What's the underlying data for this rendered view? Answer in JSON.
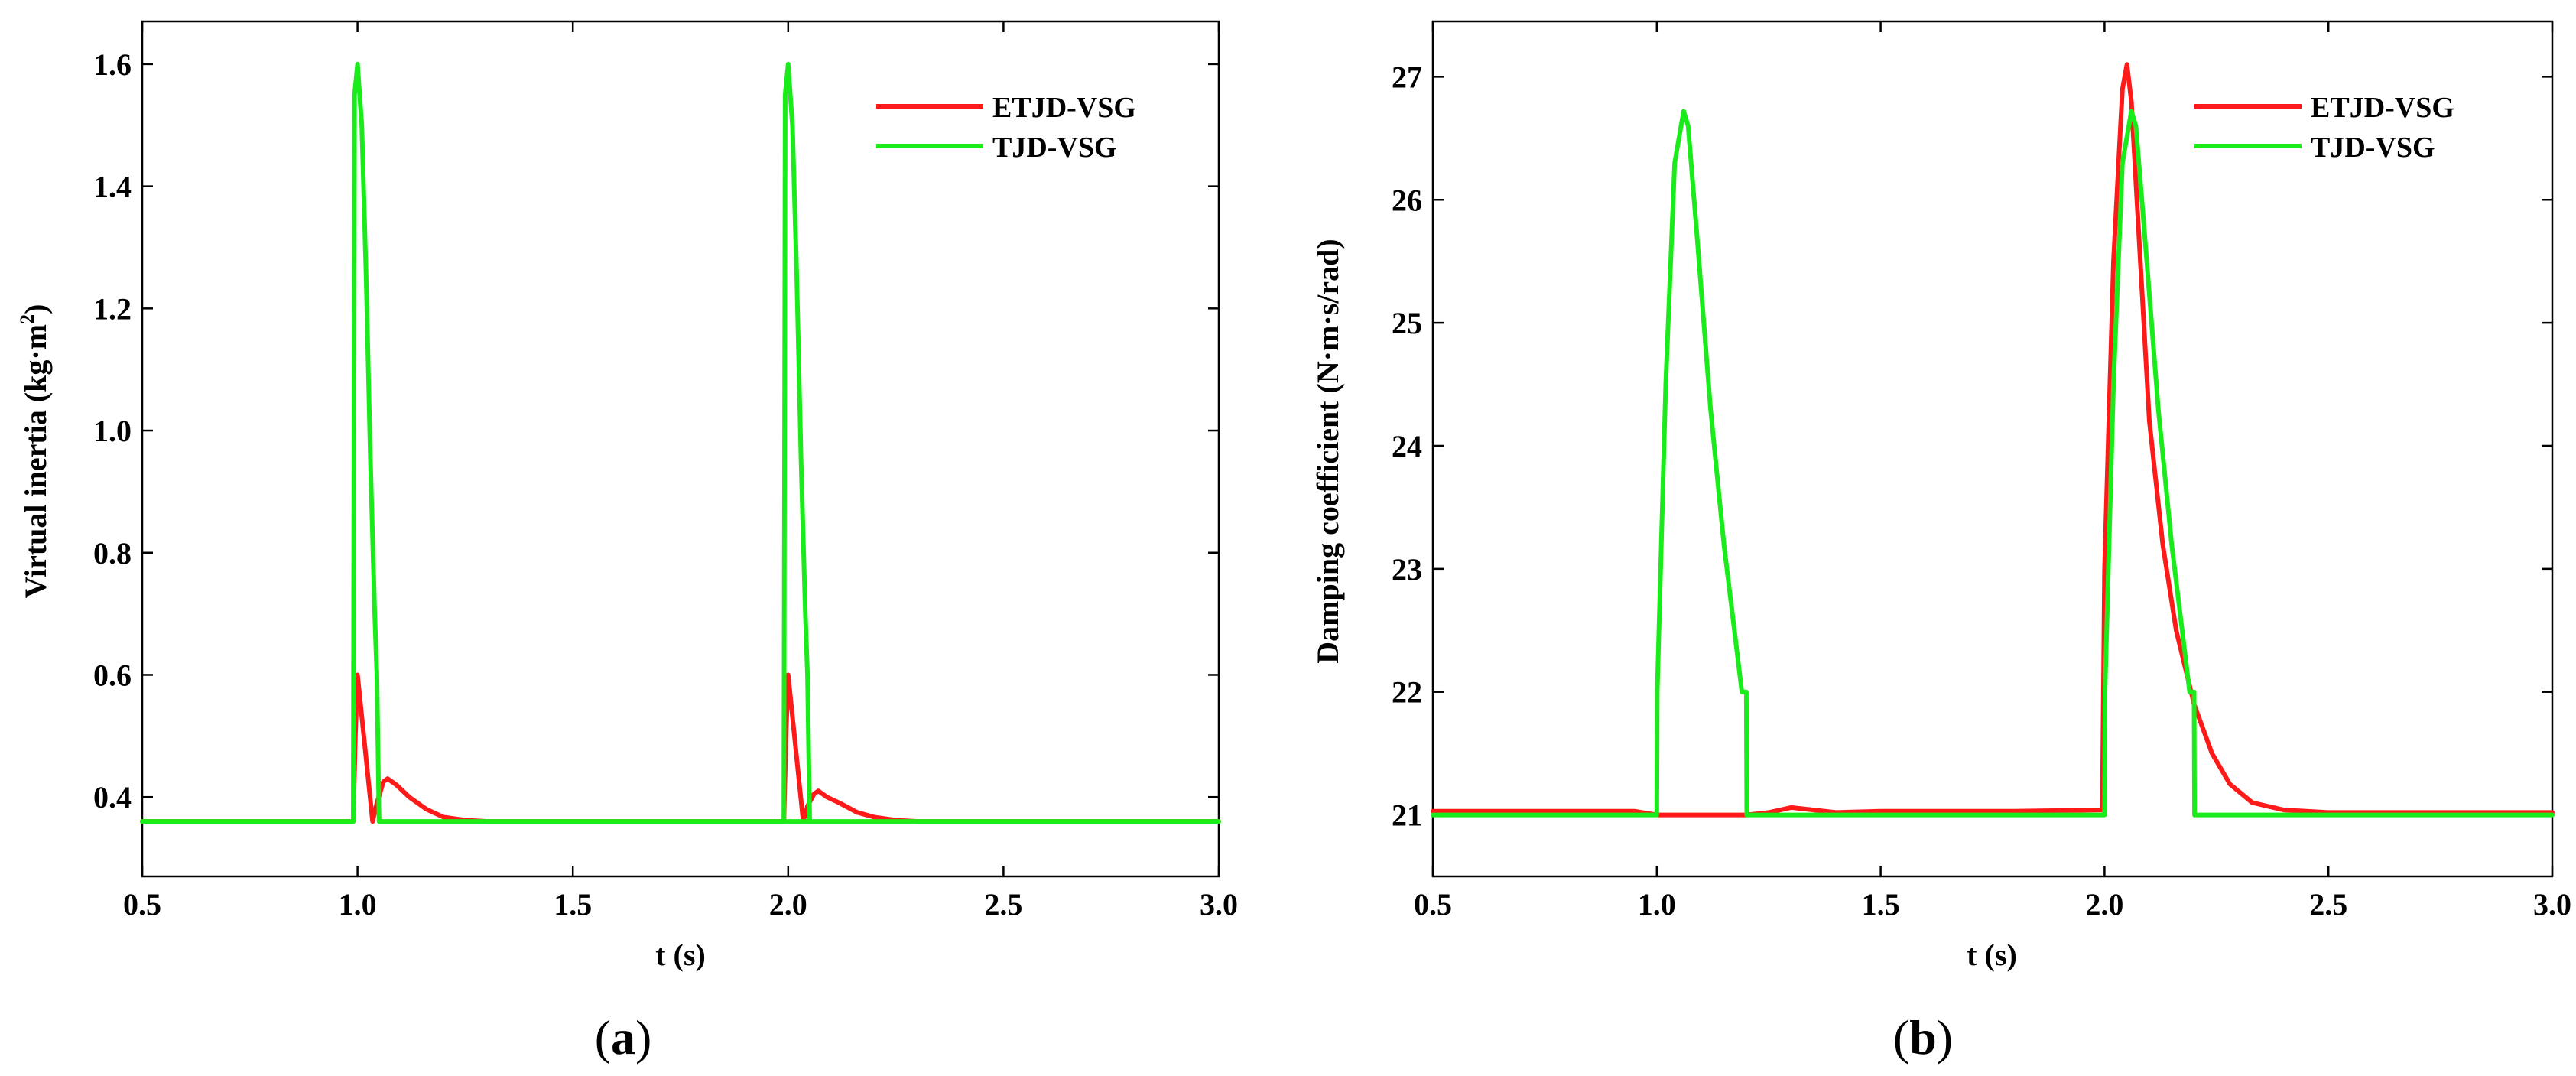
{
  "chart_data": [
    {
      "id": "a",
      "type": "line",
      "panel_label": "a",
      "xlabel": "t (s)",
      "ylabel": "Virtual inertia  (kg·m",
      "ylabel_sup": "2",
      "ylabel_close": ")",
      "xlim": [
        0.5,
        3.0
      ],
      "ylim": [
        0.27,
        1.67
      ],
      "xticks": [
        0.5,
        1.0,
        1.5,
        2.0,
        2.5,
        3.0
      ],
      "xtick_labels": [
        "0.5",
        "1.0",
        "1.5",
        "2.0",
        "2.5",
        "3.0"
      ],
      "yticks": [
        0.4,
        0.6,
        0.8,
        1.0,
        1.2,
        1.4,
        1.6
      ],
      "ytick_labels": [
        "0.4",
        "0.6",
        "0.8",
        "1.0",
        "1.2",
        "1.4",
        "1.6"
      ],
      "grid": false,
      "legend_position": "top-right",
      "series": [
        {
          "name": "ETJD-VSG",
          "color": "#ff1a1a",
          "x": [
            0.5,
            0.99,
            0.995,
            1.0,
            1.035,
            1.045,
            1.06,
            1.07,
            1.09,
            1.12,
            1.16,
            1.2,
            1.25,
            1.3,
            1.99,
            1.995,
            2.0,
            2.035,
            2.045,
            2.06,
            2.07,
            2.09,
            2.12,
            2.16,
            2.2,
            2.25,
            2.3,
            3.0
          ],
          "y": [
            0.36,
            0.36,
            0.5,
            0.6,
            0.36,
            0.39,
            0.425,
            0.43,
            0.42,
            0.4,
            0.38,
            0.367,
            0.362,
            0.36,
            0.36,
            0.5,
            0.6,
            0.36,
            0.385,
            0.405,
            0.41,
            0.4,
            0.39,
            0.375,
            0.367,
            0.362,
            0.36,
            0.36
          ]
        },
        {
          "name": "TJD-VSG",
          "color": "#1aeb1a",
          "x": [
            0.5,
            0.99,
            0.993,
            1.0,
            1.01,
            1.02,
            1.03,
            1.04,
            1.045,
            1.05,
            3.0
          ],
          "y": [
            0.36,
            0.36,
            1.55,
            1.6,
            1.5,
            1.25,
            0.95,
            0.7,
            0.6,
            0.36,
            0.36
          ],
          "x2": [
            1.99,
            1.993,
            2.0,
            2.01,
            2.02,
            2.03,
            2.04,
            2.045,
            2.05
          ],
          "y2": [
            0.36,
            1.55,
            1.6,
            1.5,
            1.25,
            0.95,
            0.7,
            0.6,
            0.36
          ]
        }
      ]
    },
    {
      "id": "b",
      "type": "line",
      "panel_label": "b",
      "xlabel": "t (s)",
      "ylabel": "Damping coefficient  (N·m·s/rad)",
      "xlim": [
        0.5,
        3.0
      ],
      "ylim": [
        20.5,
        27.45
      ],
      "xticks": [
        0.5,
        1.0,
        1.5,
        2.0,
        2.5,
        3.0
      ],
      "xtick_labels": [
        "0.5",
        "1.0",
        "1.5",
        "2.0",
        "2.5",
        "3.0"
      ],
      "yticks": [
        21,
        22,
        23,
        24,
        25,
        26,
        27
      ],
      "ytick_labels": [
        "21",
        "22",
        "23",
        "24",
        "25",
        "26",
        "27"
      ],
      "grid": false,
      "legend_position": "top-right",
      "series": [
        {
          "name": "ETJD-VSG",
          "color": "#ff1a1a",
          "x": [
            0.5,
            0.95,
            1.0,
            1.2,
            1.25,
            1.3,
            1.35,
            1.4,
            1.5,
            1.8,
            1.995,
            2.0,
            2.02,
            2.04,
            2.05,
            2.06,
            2.08,
            2.1,
            2.13,
            2.16,
            2.2,
            2.24,
            2.28,
            2.33,
            2.4,
            2.5,
            3.0
          ],
          "y": [
            21.03,
            21.03,
            21.0,
            21.0,
            21.02,
            21.06,
            21.04,
            21.02,
            21.03,
            21.03,
            21.04,
            23.0,
            25.5,
            26.9,
            27.1,
            26.8,
            25.5,
            24.2,
            23.2,
            22.5,
            21.9,
            21.5,
            21.25,
            21.1,
            21.04,
            21.02,
            21.02
          ]
        },
        {
          "name": "TJD-VSG",
          "color": "#1aeb1a",
          "x": [
            0.5,
            1.0,
            1.001,
            1.02,
            1.04,
            1.06,
            1.07,
            1.09,
            1.12,
            1.15,
            1.19,
            1.2,
            1.201,
            2.0,
            2.001,
            2.02,
            2.04,
            2.06,
            2.07,
            2.09,
            2.12,
            2.15,
            2.19,
            2.2,
            2.201,
            3.0
          ],
          "y": [
            21.0,
            21.0,
            22.0,
            24.5,
            26.3,
            26.72,
            26.6,
            25.7,
            24.3,
            23.2,
            22.0,
            22.0,
            21.0,
            21.0,
            22.0,
            24.5,
            26.3,
            26.72,
            26.6,
            25.7,
            24.3,
            23.2,
            22.0,
            22.0,
            21.0,
            21.0
          ]
        }
      ]
    }
  ]
}
